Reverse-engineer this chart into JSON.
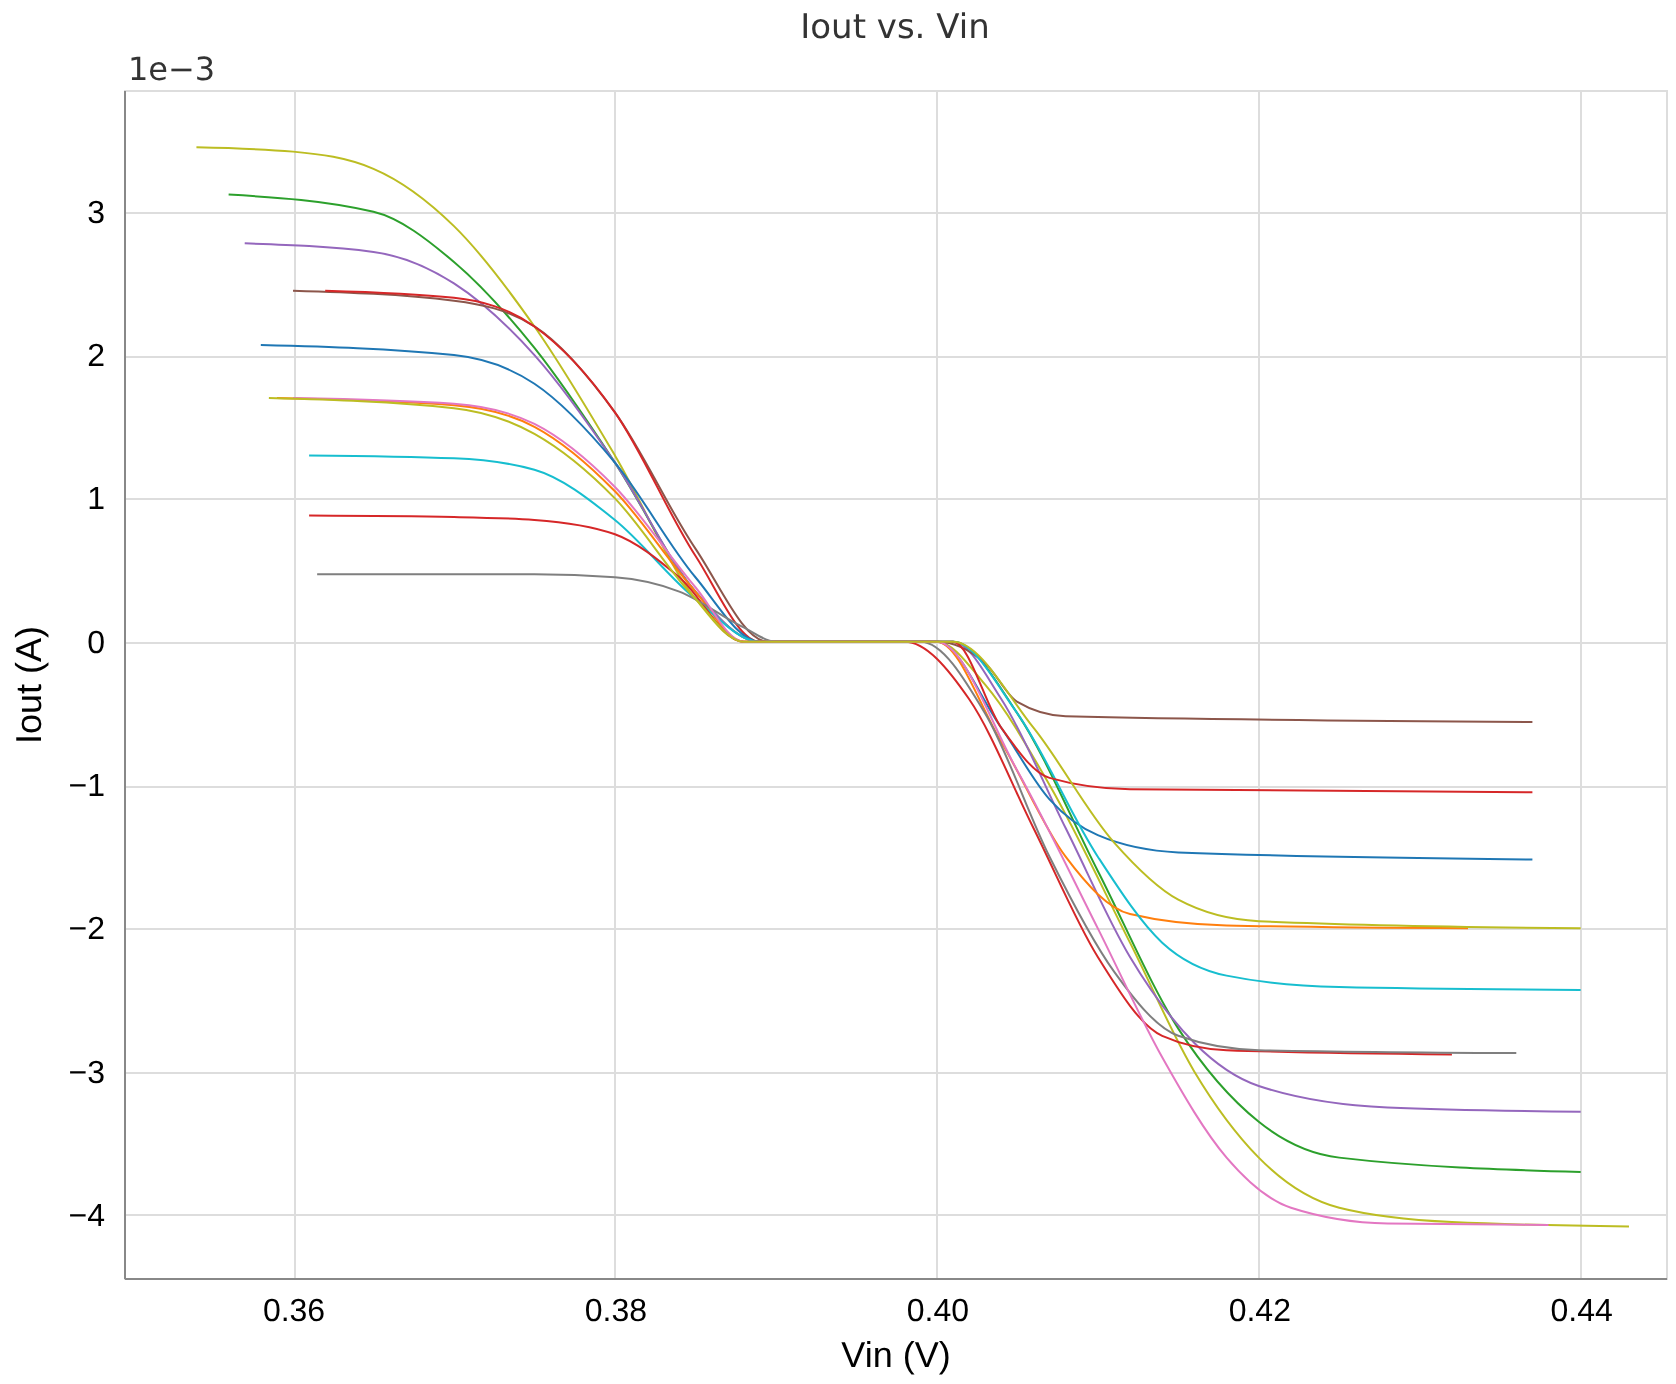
{
  "chart_data": {
    "type": "line",
    "title": "Iout vs. Vin",
    "xlabel": "Vin (V)",
    "ylabel": "Iout (A)",
    "annotations": [
      "1e−3"
    ],
    "xlim": [
      0.3495,
      0.4453
    ],
    "ylim": [
      -4.44,
      3.85
    ],
    "xticks": [
      0.36,
      0.38,
      {
        "value": 0.4,
        "label": "0.40"
      },
      0.42,
      0.44
    ],
    "yticks": [
      -4,
      -3,
      -2,
      -1,
      0,
      1,
      2,
      3
    ],
    "grid": true,
    "line_style": "solid",
    "series": [
      {
        "color": "#bcbd22",
        "x": [
          0.354,
          0.36,
          0.365,
          0.37,
          0.375,
          0.38,
          0.385,
          0.388,
          0.395,
          0.4,
          0.403,
          0.407,
          0.412,
          0.416,
          0.42,
          0.425,
          0.432,
          0.443
        ],
        "values": [
          3.45,
          3.42,
          3.3,
          2.9,
          2.2,
          1.3,
          0.3,
          0,
          0,
          0,
          -0.3,
          -1.0,
          -2.1,
          -3.0,
          -3.6,
          -3.95,
          -4.05,
          -4.08
        ]
      },
      {
        "color": "#2ca02c",
        "x": [
          0.356,
          0.365,
          0.37,
          0.375,
          0.38,
          0.385,
          0.389,
          0.395,
          0.401,
          0.405,
          0.41,
          0.415,
          0.42,
          0.425,
          0.44
        ],
        "values": [
          3.12,
          3.0,
          2.65,
          2.05,
          1.25,
          0.35,
          0,
          0,
          0,
          -0.5,
          -1.6,
          -2.7,
          -3.35,
          -3.6,
          -3.7
        ]
      },
      {
        "color": "#9467bd",
        "x": [
          0.357,
          0.365,
          0.37,
          0.375,
          0.38,
          0.385,
          0.389,
          0.395,
          0.401,
          0.404,
          0.408,
          0.412,
          0.416,
          0.42,
          0.428,
          0.44
        ],
        "values": [
          2.78,
          2.72,
          2.5,
          2.0,
          1.25,
          0.35,
          0,
          0,
          0,
          -0.4,
          -1.3,
          -2.2,
          -2.8,
          -3.1,
          -3.25,
          -3.28
        ]
      },
      {
        "color": "#8c564b",
        "x": [
          0.36,
          0.37,
          0.375,
          0.38,
          0.385,
          0.3895,
          0.395,
          0.4,
          0.403,
          0.405,
          0.408,
          0.437
        ],
        "values": [
          2.45,
          2.38,
          2.2,
          1.6,
          0.65,
          0,
          0,
          0,
          -0.15,
          -0.42,
          -0.52,
          -0.56
        ]
      },
      {
        "color": "#d62728",
        "x": [
          0.362,
          0.37,
          0.375,
          0.38,
          0.385,
          0.389,
          0.394,
          0.398,
          0.402,
          0.406,
          0.41,
          0.414,
          0.418,
          0.432
        ],
        "values": [
          2.45,
          2.4,
          2.2,
          1.6,
          0.6,
          0,
          0,
          0,
          -0.4,
          -1.3,
          -2.2,
          -2.75,
          -2.85,
          -2.88
        ]
      },
      {
        "color": "#1f77b4",
        "x": [
          0.358,
          0.37,
          0.375,
          0.38,
          0.385,
          0.389,
          0.395,
          0.4,
          0.404,
          0.407,
          0.41,
          0.415,
          0.437
        ],
        "values": [
          2.07,
          2.0,
          1.8,
          1.25,
          0.45,
          0,
          0,
          0,
          -0.6,
          -1.1,
          -1.35,
          -1.47,
          -1.52
        ]
      },
      {
        "color": "#ff7f0e",
        "x": [
          0.359,
          0.37,
          0.375,
          0.38,
          0.385,
          0.388,
          0.395,
          0.4,
          0.404,
          0.408,
          0.412,
          0.418,
          0.433
        ],
        "values": [
          1.7,
          1.65,
          1.5,
          1.05,
          0.35,
          0,
          0,
          0,
          -0.7,
          -1.5,
          -1.9,
          -1.98,
          -2.0
        ]
      },
      {
        "color": "#17becf",
        "x": [
          0.361,
          0.37,
          0.375,
          0.38,
          0.385,
          0.389,
          0.395,
          0.401,
          0.405,
          0.41,
          0.414,
          0.418,
          0.425,
          0.44
        ],
        "values": [
          1.3,
          1.28,
          1.2,
          0.85,
          0.3,
          0,
          0,
          0,
          -0.5,
          -1.5,
          -2.1,
          -2.33,
          -2.41,
          -2.43
        ]
      },
      {
        "color": "#d62728",
        "x": [
          0.361,
          0.37,
          0.375,
          0.38,
          0.384,
          0.388,
          0.395,
          0.401,
          0.404,
          0.407,
          0.412,
          0.437
        ],
        "values": [
          0.88,
          0.87,
          0.85,
          0.75,
          0.45,
          0,
          0,
          0,
          -0.6,
          -0.95,
          -1.03,
          -1.05
        ]
      },
      {
        "color": "#7f7f7f",
        "x": [
          0.3615,
          0.375,
          0.38,
          0.384,
          0.388,
          0.39,
          0.395,
          0.399,
          0.403,
          0.407,
          0.411,
          0.415,
          0.42,
          0.436
        ],
        "values": [
          0.47,
          0.47,
          0.45,
          0.35,
          0.1,
          0,
          0,
          0,
          -0.5,
          -1.5,
          -2.3,
          -2.75,
          -2.85,
          -2.87
        ]
      },
      {
        "color": "#e377c2",
        "x": [
          0.36,
          0.37,
          0.375,
          0.38,
          0.385,
          0.388,
          0.395,
          0.4,
          0.405,
          0.41,
          0.414,
          0.418,
          0.422,
          0.428,
          0.438
        ],
        "values": [
          1.7,
          1.66,
          1.52,
          1.08,
          0.38,
          0,
          0,
          0,
          -0.9,
          -2.0,
          -2.9,
          -3.6,
          -3.95,
          -4.06,
          -4.07
        ]
      },
      {
        "color": "#bcbd22",
        "x": [
          0.3585,
          0.37,
          0.375,
          0.38,
          0.385,
          0.388,
          0.395,
          0.401,
          0.406,
          0.411,
          0.415,
          0.42,
          0.44
        ],
        "values": [
          1.7,
          1.63,
          1.45,
          1.0,
          0.3,
          0,
          0,
          0,
          -0.6,
          -1.4,
          -1.8,
          -1.95,
          -2.0
        ]
      }
    ]
  }
}
